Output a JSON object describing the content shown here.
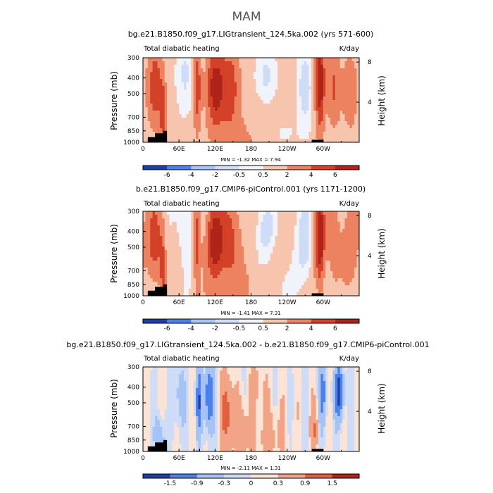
{
  "season": "MAM",
  "chart_data": [
    {
      "type": "heatmap",
      "title": "bg.e21.B1850.f09_g17.LIGtransient_124.5ka.002 (yrs 571-600)",
      "left_string": "Total diabatic heating",
      "right_string": "K/day",
      "ylabel": "Pressure (mb)",
      "y2label": "Height (km)",
      "xticks": [
        "0",
        "60E",
        "120E",
        "180",
        "120W",
        "60W"
      ],
      "xvalues": [
        0,
        60,
        120,
        180,
        240,
        300
      ],
      "xlim": [
        0,
        360
      ],
      "yticks": [
        "300",
        "400",
        "500",
        "700",
        "850",
        "1000"
      ],
      "yvalues": [
        300,
        400,
        500,
        700,
        850,
        1000
      ],
      "ylim": [
        1000,
        300
      ],
      "y2ticks": [
        "8",
        "4"
      ],
      "y2values": [
        8,
        4
      ],
      "minmax": "MIN =   -1.32   MAX =   7.94",
      "min": -1.32,
      "max": 7.94,
      "levels": [
        "-6",
        "-4",
        "-2",
        "-0.5",
        "0.5",
        "2",
        "4",
        "6"
      ],
      "colorbar_labels": [
        "-6",
        "-4",
        "-2",
        "-0.5",
        "0.5",
        "2",
        "4",
        "6"
      ],
      "field": "full",
      "variant": 0
    },
    {
      "type": "heatmap",
      "title": "b.e21.B1850.f09_g17.CMIP6-piControl.001 (yrs 1171-1200)",
      "left_string": "Total diabatic heating",
      "right_string": "K/day",
      "ylabel": "Pressure (mb)",
      "y2label": "Height (km)",
      "xticks": [
        "0",
        "60E",
        "120E",
        "180",
        "120W",
        "60W"
      ],
      "xvalues": [
        0,
        60,
        120,
        180,
        240,
        300
      ],
      "xlim": [
        0,
        360
      ],
      "yticks": [
        "300",
        "400",
        "500",
        "700",
        "850",
        "1000"
      ],
      "yvalues": [
        300,
        400,
        500,
        700,
        850,
        1000
      ],
      "ylim": [
        1000,
        300
      ],
      "y2ticks": [
        "8",
        "4"
      ],
      "y2values": [
        8,
        4
      ],
      "minmax": "MIN =   -1.41   MAX =   7.31",
      "min": -1.41,
      "max": 7.31,
      "levels": [
        "-6",
        "-4",
        "-2",
        "-0.5",
        "0.5",
        "2",
        "4",
        "6"
      ],
      "colorbar_labels": [
        "-6",
        "-4",
        "-2",
        "-0.5",
        "0.5",
        "2",
        "4",
        "6"
      ],
      "field": "full",
      "variant": 1
    },
    {
      "type": "heatmap",
      "title": "bg.e21.B1850.f09_g17.LIGtransient_124.5ka.002 - b.e21.B1850.f09_g17.CMIP6-piControl.001",
      "left_string": "Total diabatic heating",
      "right_string": "K/day",
      "ylabel": "Pressure (mb)",
      "y2label": "Height (km)",
      "xticks": [
        "0",
        "60E",
        "120E",
        "180",
        "120W",
        "60W"
      ],
      "xvalues": [
        0,
        60,
        120,
        180,
        240,
        300
      ],
      "xlim": [
        0,
        360
      ],
      "yticks": [
        "300",
        "400",
        "500",
        "700",
        "850",
        "1000"
      ],
      "yvalues": [
        300,
        400,
        500,
        700,
        850,
        1000
      ],
      "ylim": [
        1000,
        300
      ],
      "y2ticks": [
        "8",
        "4"
      ],
      "y2values": [
        8,
        4
      ],
      "minmax": "MIN =   -2.11   MAX =   1.31",
      "min": -2.11,
      "max": 1.31,
      "levels": [
        "-1.5",
        "-0.9",
        "-0.3",
        "0",
        "0.3",
        "0.9",
        "1.5"
      ],
      "colorbar_labels": [
        "-1.5",
        "-0.9",
        "-0.3",
        "0",
        "0.3",
        "0.9",
        "1.5"
      ],
      "field": "diff",
      "variant": 2
    }
  ],
  "colors": {
    "palette": [
      "#0a1e78",
      "#1f3fa8",
      "#2f5fd0",
      "#4c80ea",
      "#7aa4f2",
      "#a6c3f5",
      "#cfdcf7",
      "#f1f3fa",
      "#fbe3d6",
      "#f7c5ad",
      "#f2a487",
      "#ec8260",
      "#e3603e",
      "#d24128",
      "#b02318",
      "#7a0e0a"
    ],
    "mask": "#000000"
  }
}
